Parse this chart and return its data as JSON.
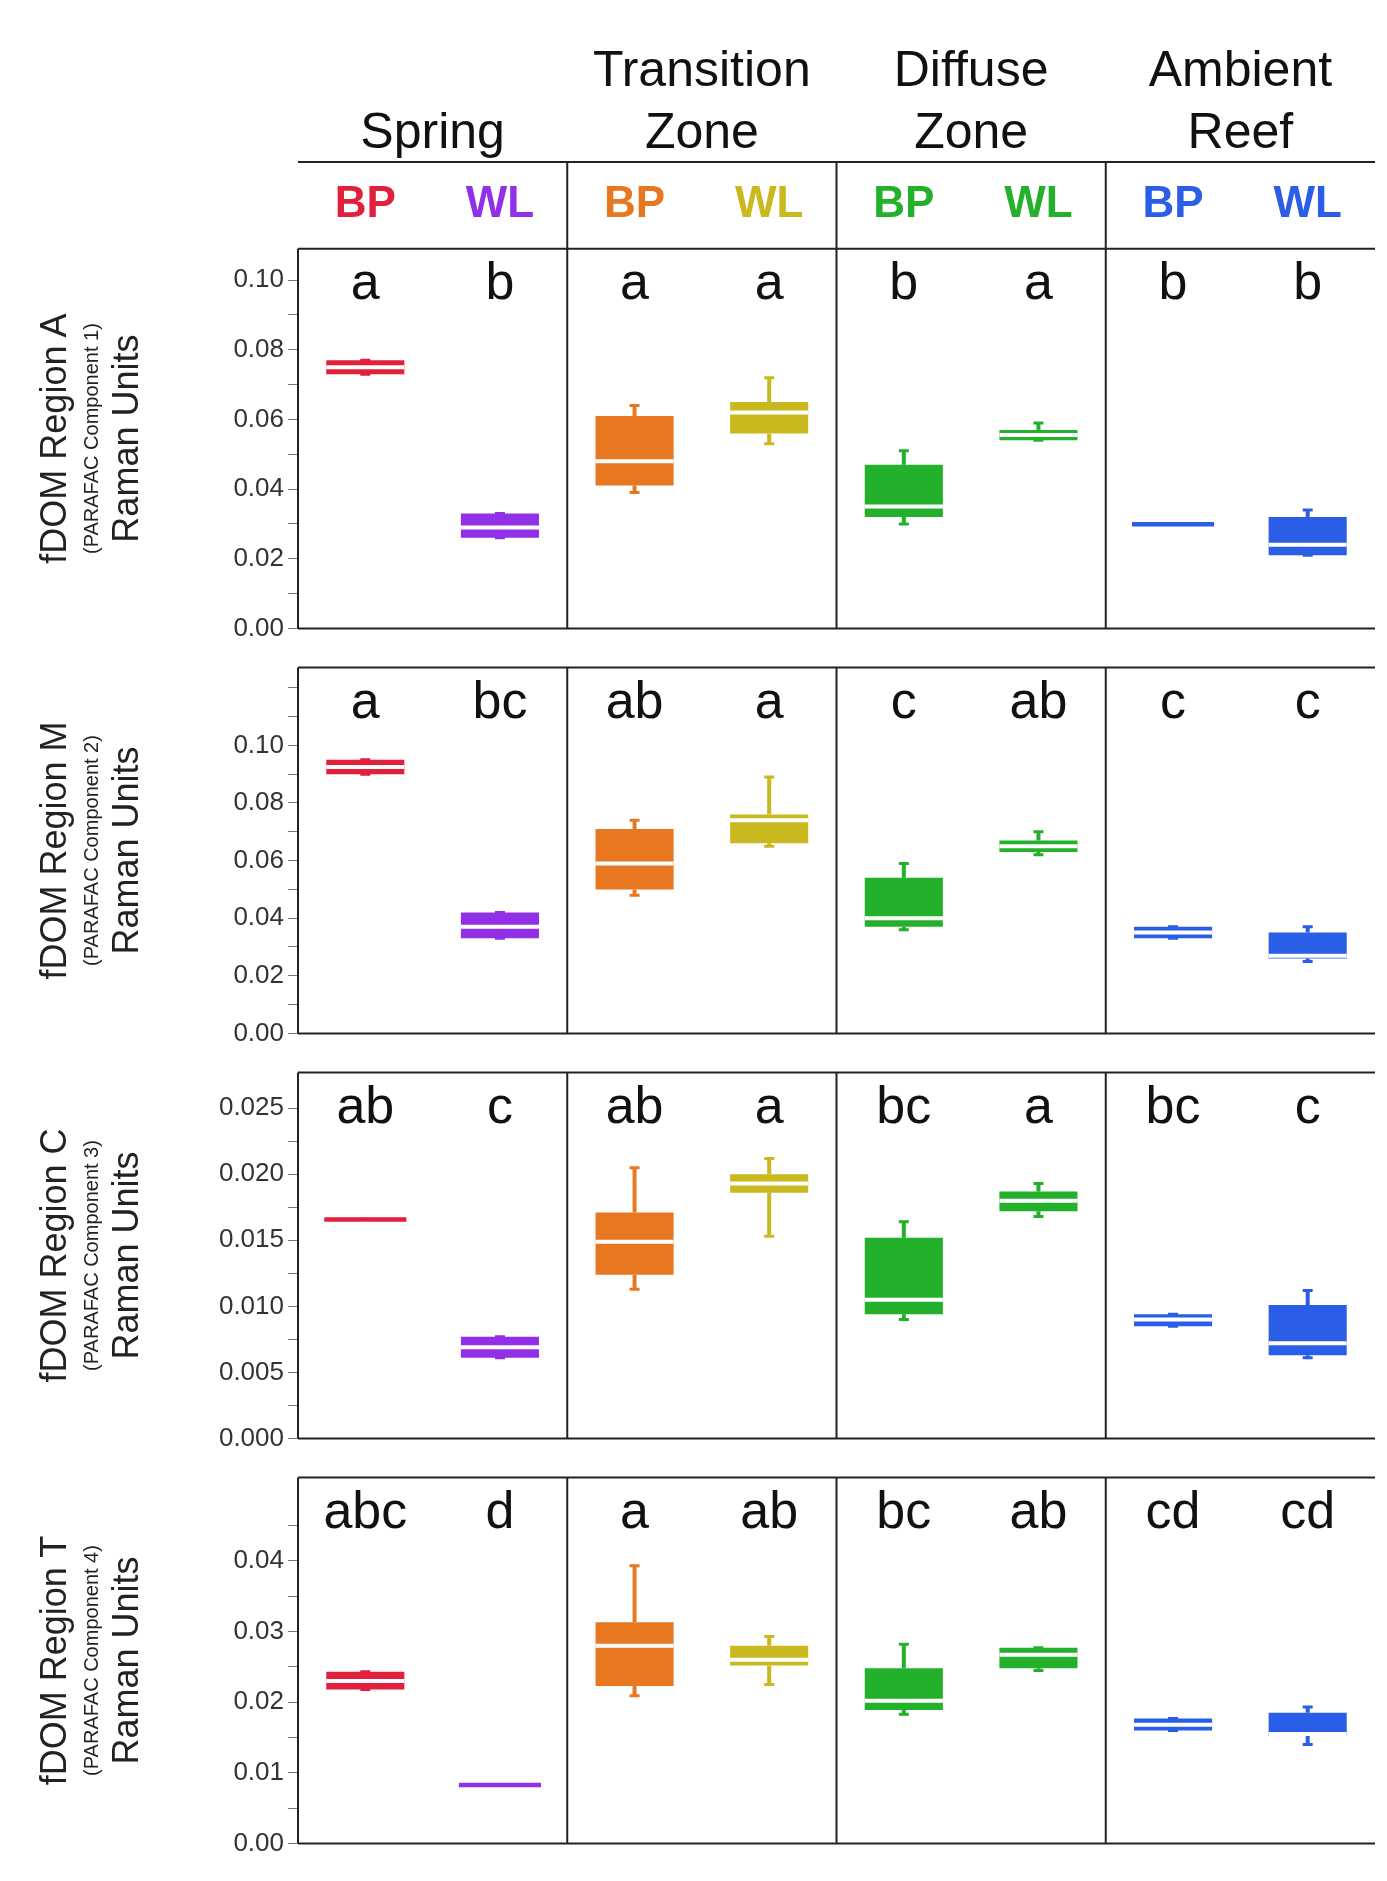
{
  "chart_data": [
    {
      "type": "box",
      "categories": [
        "BP",
        "WL",
        "BP",
        "WL",
        "BP",
        "WL",
        "BP",
        "WL"
      ],
      "colors": [
        "#e21f3c",
        "#9130e6",
        "#e87722",
        "#c9b81e",
        "#23b02a",
        "#23b02a",
        "#2b5ee6",
        "#2b5ee6"
      ],
      "ylabel": "fDOM Region A\n(PARAFAC Component 1)\nRaman Units",
      "ylim": [
        0,
        0.109
      ],
      "yticks": [
        {
          "value": 0,
          "label": "0.00"
        },
        {
          "value": 0.01,
          "label": null
        },
        {
          "value": 0.02,
          "label": "0.02"
        },
        {
          "value": 0.03,
          "label": null
        },
        {
          "value": 0.04,
          "label": "0.04"
        },
        {
          "value": 0.05,
          "label": null
        },
        {
          "value": 0.06,
          "label": "0.06"
        },
        {
          "value": 0.07,
          "label": null
        },
        {
          "value": 0.08,
          "label": "0.08"
        },
        {
          "value": 0.09,
          "label": null
        },
        {
          "value": 0.1,
          "label": "0.10"
        }
      ],
      "annotations": [
        "Spring",
        "Transition Zone",
        "Diffuse Zone",
        "Ambient Reef",
        "a",
        "b",
        "a",
        "a",
        "b",
        "a",
        "b",
        "b"
      ],
      "boxes": [
        {
          "low": 0.073,
          "q1": 0.073,
          "median": 0.075,
          "q3": 0.077,
          "high": 0.077
        },
        {
          "low": 0.026,
          "q1": 0.026,
          "median": 0.029,
          "q3": 0.033,
          "high": 0.033
        },
        {
          "low": 0.039,
          "q1": 0.041,
          "median": 0.048,
          "q3": 0.061,
          "high": 0.064
        },
        {
          "low": 0.053,
          "q1": 0.056,
          "median": 0.062,
          "q3": 0.065,
          "high": 0.072
        },
        {
          "low": 0.03,
          "q1": 0.032,
          "median": 0.035,
          "q3": 0.047,
          "high": 0.051
        },
        {
          "low": 0.054,
          "q1": 0.054,
          "median": 0.0555,
          "q3": 0.057,
          "high": 0.059
        },
        {
          "low": 0.03,
          "q1": 0.03,
          "median": 0.03,
          "q3": 0.03,
          "high": 0.03
        },
        {
          "low": 0.021,
          "q1": 0.021,
          "median": 0.024,
          "q3": 0.032,
          "high": 0.034
        }
      ]
    },
    {
      "type": "box",
      "categories": [
        null,
        null,
        null,
        null,
        null,
        null,
        null,
        null
      ],
      "colors": [
        "#e21f3c",
        "#9130e6",
        "#e87722",
        "#c9b81e",
        "#23b02a",
        "#23b02a",
        "#2b5ee6",
        "#2b5ee6"
      ],
      "ylabel": "fDOM Region M\n(PARAFAC Component 2)\nRaman Units",
      "ylim": [
        0,
        0.127
      ],
      "tick_labels": "y",
      "yticks": [
        {
          "value": 0,
          "label": "0.00"
        },
        {
          "value": 0.01,
          "label": null
        },
        {
          "value": 0.02,
          "label": "0.02"
        },
        {
          "value": 0.03,
          "label": null
        },
        {
          "value": 0.04,
          "label": "0.04"
        },
        {
          "value": 0.05,
          "label": null
        },
        {
          "value": 0.06,
          "label": "0.06"
        },
        {
          "value": 0.07,
          "label": null
        },
        {
          "value": 0.08,
          "label": "0.08"
        },
        {
          "value": 0.09,
          "label": null
        },
        {
          "value": 0.1,
          "label": "0.10"
        },
        {
          "value": 0.11,
          "label": null
        },
        {
          "value": 0.12,
          "label": null
        }
      ],
      "annotations": [
        "a",
        "bc",
        "ab",
        "a",
        "c",
        "ab",
        "c",
        "c"
      ],
      "boxes": [
        {
          "low": 0.09,
          "q1": 0.09,
          "median": 0.0925,
          "q3": 0.095,
          "high": 0.095
        },
        {
          "low": 0.033,
          "q1": 0.033,
          "median": 0.037,
          "q3": 0.042,
          "high": 0.042
        },
        {
          "low": 0.048,
          "q1": 0.05,
          "median": 0.059,
          "q3": 0.071,
          "high": 0.074
        },
        {
          "low": 0.065,
          "q1": 0.066,
          "median": 0.074,
          "q3": 0.076,
          "high": 0.089
        },
        {
          "low": 0.036,
          "q1": 0.037,
          "median": 0.04,
          "q3": 0.054,
          "high": 0.059
        },
        {
          "low": 0.062,
          "q1": 0.063,
          "median": 0.065,
          "q3": 0.067,
          "high": 0.07
        },
        {
          "low": 0.033,
          "q1": 0.033,
          "median": 0.035,
          "q3": 0.037,
          "high": 0.037
        },
        {
          "low": 0.025,
          "q1": 0.026,
          "median": 0.027,
          "q3": 0.035,
          "high": 0.037
        }
      ]
    },
    {
      "type": "box",
      "categories": [
        null,
        null,
        null,
        null,
        null,
        null,
        null,
        null
      ],
      "colors": [
        "#e21f3c",
        "#9130e6",
        "#e87722",
        "#c9b81e",
        "#23b02a",
        "#23b02a",
        "#2b5ee6",
        "#2b5ee6"
      ],
      "ylabel": "fDOM Region C\n(PARAFAC Component 3)\nRaman Units",
      "ylim": [
        0,
        0.0277
      ],
      "tick_labels": "y",
      "yticks": [
        {
          "value": 0,
          "label": "0.000"
        },
        {
          "value": 0.0025,
          "label": null
        },
        {
          "value": 0.005,
          "label": "0.005"
        },
        {
          "value": 0.0075,
          "label": null
        },
        {
          "value": 0.01,
          "label": "0.010"
        },
        {
          "value": 0.0125,
          "label": null
        },
        {
          "value": 0.015,
          "label": "0.015"
        },
        {
          "value": 0.0175,
          "label": null
        },
        {
          "value": 0.02,
          "label": "0.020"
        },
        {
          "value": 0.0225,
          "label": null
        },
        {
          "value": 0.025,
          "label": "0.025"
        }
      ],
      "annotations": [
        "ab",
        "c",
        "ab",
        "a",
        "bc",
        "a",
        "bc",
        "c"
      ],
      "boxes": [
        {
          "low": 0.0166,
          "q1": 0.0166,
          "median": 0.0166,
          "q3": 0.0166,
          "high": 0.0166
        },
        {
          "low": 0.0061,
          "q1": 0.0061,
          "median": 0.0069,
          "q3": 0.0077,
          "high": 0.0077
        },
        {
          "low": 0.0113,
          "q1": 0.0124,
          "median": 0.0149,
          "q3": 0.0171,
          "high": 0.0205
        },
        {
          "low": 0.0153,
          "q1": 0.0186,
          "median": 0.0193,
          "q3": 0.02,
          "high": 0.0212
        },
        {
          "low": 0.009,
          "q1": 0.0094,
          "median": 0.0105,
          "q3": 0.0152,
          "high": 0.0164
        },
        {
          "low": 0.0168,
          "q1": 0.0172,
          "median": 0.018,
          "q3": 0.0187,
          "high": 0.0193
        },
        {
          "low": 0.0085,
          "q1": 0.0085,
          "median": 0.009,
          "q3": 0.0094,
          "high": 0.0094
        },
        {
          "low": 0.0061,
          "q1": 0.0063,
          "median": 0.0072,
          "q3": 0.0101,
          "high": 0.0112
        }
      ]
    },
    {
      "type": "box",
      "categories": [
        null,
        null,
        null,
        null,
        null,
        null,
        null,
        null
      ],
      "colors": [
        "#e21f3c",
        "#9130e6",
        "#e87722",
        "#c9b81e",
        "#23b02a",
        "#23b02a",
        "#2b5ee6",
        "#2b5ee6"
      ],
      "ylabel": "fDOM Region T\n(PARAFAC Component 4)\nRaman Units",
      "ylim": [
        0,
        0.0518
      ],
      "tick_labels": "y",
      "yticks": [
        {
          "value": 0,
          "label": "0.00"
        },
        {
          "value": 0.005,
          "label": null
        },
        {
          "value": 0.01,
          "label": "0.01"
        },
        {
          "value": 0.015,
          "label": null
        },
        {
          "value": 0.02,
          "label": "0.02"
        },
        {
          "value": 0.025,
          "label": null
        },
        {
          "value": 0.03,
          "label": "0.03"
        },
        {
          "value": 0.035,
          "label": null
        },
        {
          "value": 0.04,
          "label": "0.04"
        },
        {
          "value": 0.045,
          "label": null
        }
      ],
      "annotations": [
        "abc",
        "d",
        "a",
        "ab",
        "bc",
        "ab",
        "cd",
        "cd"
      ],
      "boxes": [
        {
          "low": 0.0218,
          "q1": 0.0218,
          "median": 0.023,
          "q3": 0.0243,
          "high": 0.0243
        },
        {
          "low": 0.0083,
          "q1": 0.0083,
          "median": 0.0083,
          "q3": 0.0083,
          "high": 0.0083
        },
        {
          "low": 0.0209,
          "q1": 0.0223,
          "median": 0.028,
          "q3": 0.0313,
          "high": 0.0393
        },
        {
          "low": 0.0225,
          "q1": 0.0252,
          "median": 0.026,
          "q3": 0.028,
          "high": 0.0293
        },
        {
          "low": 0.0183,
          "q1": 0.0189,
          "median": 0.0202,
          "q3": 0.0248,
          "high": 0.0282
        },
        {
          "low": 0.0245,
          "q1": 0.0248,
          "median": 0.0267,
          "q3": 0.0277,
          "high": 0.0277
        },
        {
          "low": 0.016,
          "q1": 0.016,
          "median": 0.0168,
          "q3": 0.0177,
          "high": 0.0177
        },
        {
          "low": 0.014,
          "q1": 0.0152,
          "median": 0.0155,
          "q3": 0.0185,
          "high": 0.0193
        }
      ]
    }
  ]
}
